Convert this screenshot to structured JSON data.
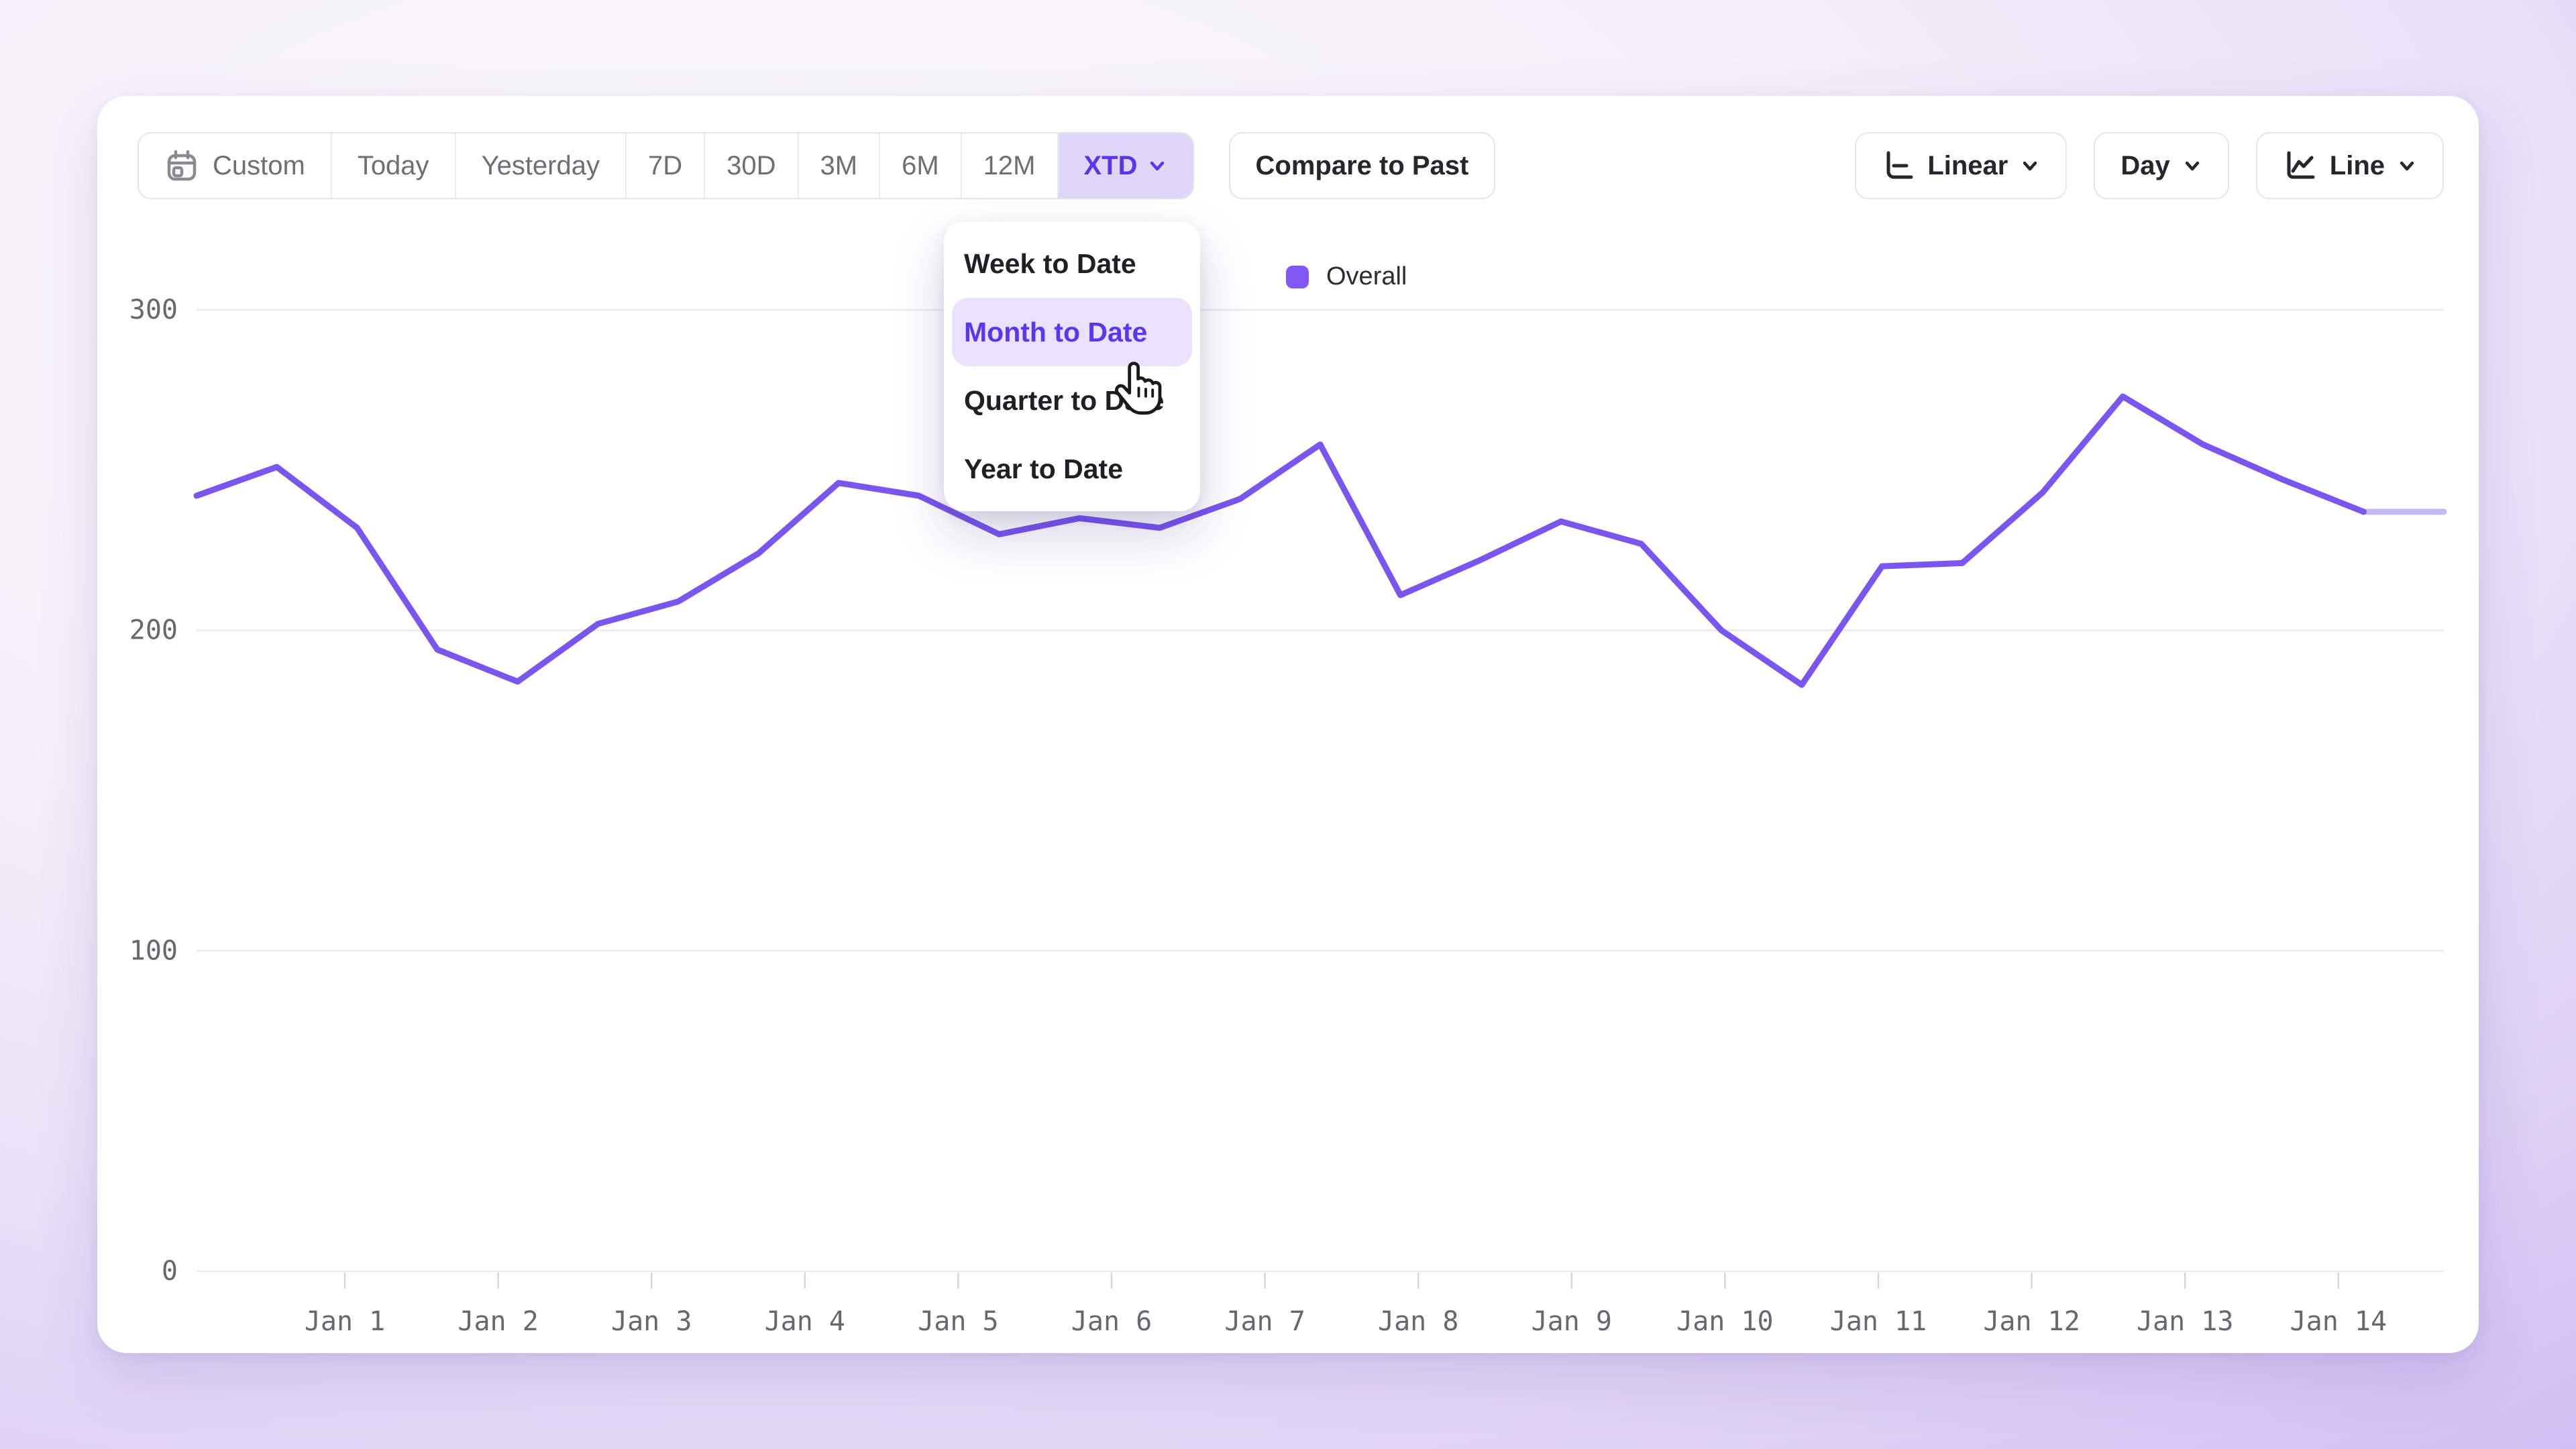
{
  "toolbar": {
    "ranges": [
      "Custom",
      "Today",
      "Yesterday",
      "7D",
      "30D",
      "3M",
      "6M",
      "12M",
      "XTD"
    ],
    "selected_range": "XTD",
    "compare_label": "Compare to Past",
    "scale_label": "Linear",
    "granularity_label": "Day",
    "chart_type_label": "Line",
    "accent_text": "#5936EE",
    "accent_bg": "#DFD6FA"
  },
  "menu": {
    "items": [
      {
        "label": "Week to Date",
        "selected": false
      },
      {
        "label": "Month to Date",
        "selected": true
      },
      {
        "label": "Quarter to Date",
        "selected": false
      },
      {
        "label": "Year to Date",
        "selected": false
      }
    ],
    "highlight_bg": "#EAE2FC",
    "highlight_text": "#5B36F0"
  },
  "legend": {
    "label": "Overall",
    "color": "#8157F5"
  },
  "chart_data": {
    "type": "line",
    "title": "",
    "xlabel": "",
    "ylabel": "",
    "x_tick_labels": [
      "Jan 1",
      "Jan 2",
      "Jan 3",
      "Jan 4",
      "Jan 5",
      "Jan 6",
      "Jan 7",
      "Jan 8",
      "Jan 9",
      "Jan 10",
      "Jan 11",
      "Jan 12",
      "Jan 13",
      "Jan 14"
    ],
    "yticks": [
      0,
      100,
      200,
      300
    ],
    "ylim": [
      0,
      300
    ],
    "grid": "horizontal-only",
    "legend_position": "top-center",
    "sampling": "half-day",
    "series": [
      {
        "name": "Overall",
        "color": "#7A55F0",
        "values": [
          242,
          251,
          232,
          194,
          184,
          202,
          209,
          224,
          246,
          242,
          230,
          235,
          232,
          241,
          258,
          211,
          222,
          234,
          227,
          200,
          183,
          220,
          221,
          243,
          273,
          258,
          247,
          237,
          237
        ],
        "trailing_faded_points": 1
      }
    ]
  }
}
